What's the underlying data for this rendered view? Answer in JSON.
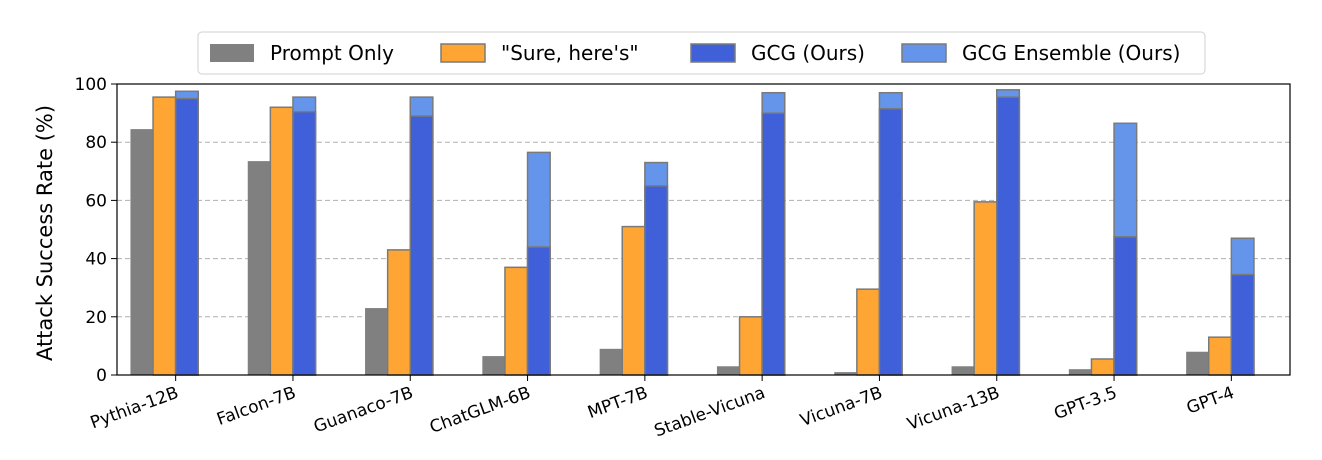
{
  "chart_data": {
    "type": "bar",
    "ylabel": "Attack Success Rate (%)",
    "ylim": [
      0,
      100
    ],
    "yticks": [
      0,
      20,
      40,
      60,
      80,
      100
    ],
    "grid": "horizontal dashed",
    "legend_position": "top-center",
    "categories": [
      "Pythia-12B",
      "Falcon-7B",
      "Guanaco-7B",
      "ChatGLM-6B",
      "MPT-7B",
      "Stable-Vicuna",
      "Vicuna-7B",
      "Vicuna-13B",
      "GPT-3.5",
      "GPT-4"
    ],
    "series": [
      {
        "name": "Prompt Only",
        "color": "#808080",
        "values": [
          84.5,
          73.5,
          23,
          6.5,
          9,
          3,
          1,
          3,
          2,
          8
        ]
      },
      {
        "name": "\"Sure, here's\"",
        "color": "#ffa533",
        "values": [
          95.5,
          92,
          43,
          37,
          51,
          20,
          29.5,
          59.5,
          5.5,
          13
        ]
      },
      {
        "name": "GCG (Ours)",
        "color": "#3f60d8",
        "values": [
          95,
          90.5,
          89,
          44,
          65,
          90,
          91.5,
          95.5,
          47.5,
          34.5
        ]
      },
      {
        "name": "GCG Ensemble (Ours)",
        "color": "#6495ea",
        "values": [
          97.5,
          95.5,
          95.5,
          76.5,
          73,
          97,
          97,
          98,
          86.5,
          47
        ]
      }
    ]
  }
}
